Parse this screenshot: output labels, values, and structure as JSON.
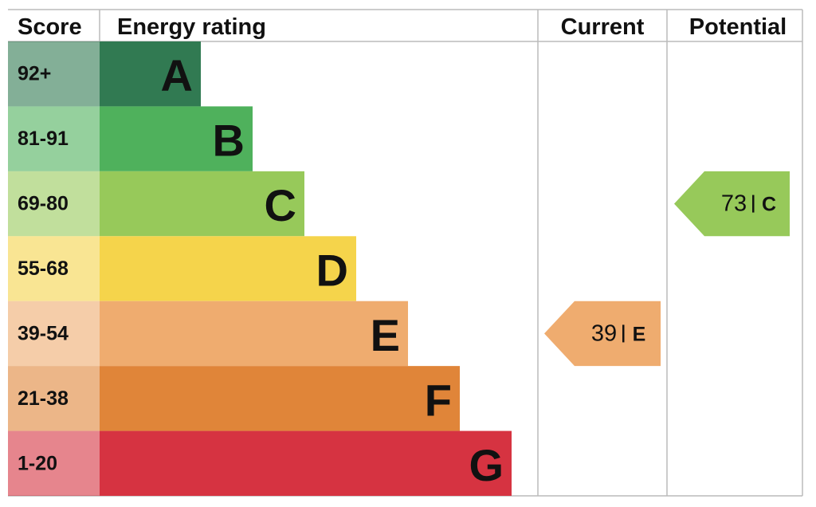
{
  "header": {
    "score": "Score",
    "rating": "Energy rating",
    "current": "Current",
    "potential": "Potential"
  },
  "bands": [
    {
      "range": "92+",
      "letter": "A",
      "color": "#317a52"
    },
    {
      "range": "81-91",
      "letter": "B",
      "color": "#4fb15c"
    },
    {
      "range": "69-80",
      "letter": "C",
      "color": "#97c95a"
    },
    {
      "range": "55-68",
      "letter": "D",
      "color": "#f5d44b"
    },
    {
      "range": "39-54",
      "letter": "E",
      "color": "#efac6f"
    },
    {
      "range": "21-38",
      "letter": "F",
      "color": "#e08539"
    },
    {
      "range": "1-20",
      "letter": "G",
      "color": "#d63341"
    }
  ],
  "current": {
    "value": 39,
    "rating": "E"
  },
  "potential": {
    "value": 73,
    "rating": "C"
  }
}
